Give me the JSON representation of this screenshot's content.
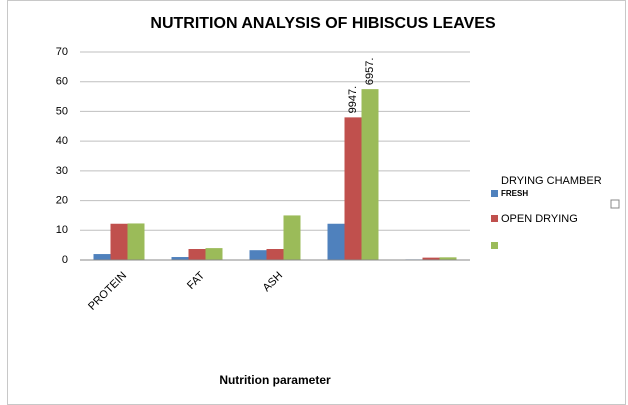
{
  "chart_data": {
    "type": "bar",
    "title": "NUTRITION ANALYSIS OF HIBISCUS LEAVES",
    "x_label": "Nutrition parameter",
    "categories": [
      "PROTEIN",
      "FAT",
      "ASH",
      null,
      null
    ],
    "series": [
      {
        "name": "FRESH",
        "color": "#4f81bd",
        "values": [
          2,
          1,
          3.3,
          12.2,
          0.2
        ]
      },
      {
        "name": "OPEN DRYING",
        "color": "#c0504d",
        "values": [
          12.2,
          3.7,
          3.7,
          48,
          0.8
        ]
      },
      {
        "name": "DRYING CHAMBER",
        "color": "#9bbb59",
        "values": [
          12.3,
          4,
          15,
          57.5,
          0.9
        ]
      }
    ],
    "annotations": [
      "9947.",
      "6957."
    ],
    "ylim": [
      0,
      70
    ],
    "yticks": [
      0,
      10,
      20,
      30,
      40,
      50,
      60,
      70
    ],
    "grid": true,
    "legend": "right"
  }
}
